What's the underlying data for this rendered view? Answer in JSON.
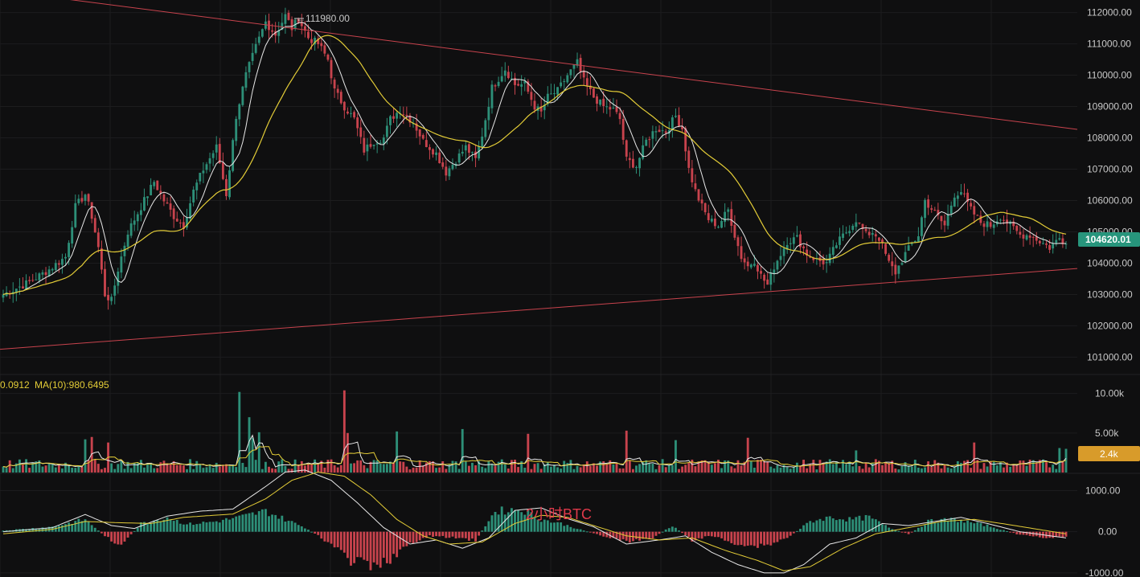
{
  "chart_data": [
    {
      "type": "candlestick",
      "panel": "price",
      "y_axis_ticks": [
        112000,
        111000,
        110000,
        109000,
        108000,
        107000,
        106000,
        105000,
        104000,
        103000,
        102000,
        101000
      ],
      "y_axis_labels": [
        "112000.00",
        "111000.00",
        "110000.00",
        "109000.00",
        "108000.00",
        "107000.00",
        "106000.00",
        "105000.00",
        "104000.00",
        "103000.00",
        "102000.00",
        "101000.00"
      ],
      "ylim": [
        100600,
        112400
      ],
      "current_price": 104620,
      "current_price_label": "104620.01",
      "high_marker_value": 111980,
      "high_marker_label": "111980.00",
      "trendlines": [
        {
          "name": "upper-resistance",
          "from": {
            "x": 0,
            "y": 112700
          },
          "to": {
            "x": 330,
            "y": 108270
          }
        },
        {
          "name": "lower-support",
          "from": {
            "x": 0,
            "y": 101250
          },
          "to": {
            "x": 330,
            "y": 103830
          }
        }
      ],
      "candle_keypoints": [
        [
          0,
          103000
        ],
        [
          8,
          103400
        ],
        [
          14,
          103800
        ],
        [
          19,
          104200
        ],
        [
          22,
          105800
        ],
        [
          25,
          106200
        ],
        [
          27,
          105500
        ],
        [
          29,
          104500
        ],
        [
          31,
          103000
        ],
        [
          33,
          102800
        ],
        [
          35,
          103800
        ],
        [
          38,
          105000
        ],
        [
          42,
          105800
        ],
        [
          46,
          106600
        ],
        [
          49,
          106000
        ],
        [
          52,
          105500
        ],
        [
          55,
          105200
        ],
        [
          58,
          106300
        ],
        [
          61,
          107000
        ],
        [
          65,
          107700
        ],
        [
          68,
          106200
        ],
        [
          71,
          108700
        ],
        [
          74,
          110000
        ],
        [
          77,
          110900
        ],
        [
          80,
          111700
        ],
        [
          83,
          111300
        ],
        [
          86,
          111900
        ],
        [
          88,
          111500
        ],
        [
          90,
          111800
        ],
        [
          93,
          111200
        ],
        [
          96,
          111000
        ],
        [
          99,
          110500
        ],
        [
          101,
          109500
        ],
        [
          104,
          109000
        ],
        [
          107,
          108600
        ],
        [
          110,
          107600
        ],
        [
          113,
          107900
        ],
        [
          116,
          108000
        ],
        [
          118,
          108600
        ],
        [
          121,
          108900
        ],
        [
          125,
          108500
        ],
        [
          128,
          107900
        ],
        [
          132,
          107500
        ],
        [
          135,
          106900
        ],
        [
          138,
          107300
        ],
        [
          141,
          107700
        ],
        [
          144,
          107300
        ],
        [
          146,
          108100
        ],
        [
          149,
          109600
        ],
        [
          153,
          110200
        ],
        [
          156,
          109700
        ],
        [
          159,
          109700
        ],
        [
          162,
          109000
        ],
        [
          164,
          108800
        ],
        [
          166,
          109300
        ],
        [
          169,
          109500
        ],
        [
          172,
          110000
        ],
        [
          175,
          110400
        ],
        [
          177,
          109800
        ],
        [
          180,
          109300
        ],
        [
          183,
          109000
        ],
        [
          186,
          108900
        ],
        [
          188,
          108600
        ],
        [
          190,
          107300
        ],
        [
          193,
          107100
        ],
        [
          196,
          107900
        ],
        [
          199,
          108300
        ],
        [
          202,
          108200
        ],
        [
          205,
          108700
        ],
        [
          207,
          108300
        ],
        [
          209,
          107000
        ],
        [
          211,
          106300
        ],
        [
          213,
          105800
        ],
        [
          215,
          105400
        ],
        [
          218,
          105200
        ],
        [
          221,
          105700
        ],
        [
          223,
          104900
        ],
        [
          225,
          104200
        ],
        [
          227,
          103900
        ],
        [
          229,
          104100
        ],
        [
          231,
          103600
        ],
        [
          233,
          103300
        ],
        [
          235,
          103900
        ],
        [
          237,
          104300
        ],
        [
          239,
          104700
        ],
        [
          242,
          104800
        ],
        [
          245,
          104300
        ],
        [
          248,
          104100
        ],
        [
          251,
          104000
        ],
        [
          254,
          104600
        ],
        [
          257,
          105000
        ],
        [
          260,
          105400
        ],
        [
          263,
          104900
        ],
        [
          265,
          105000
        ],
        [
          267,
          104800
        ],
        [
          270,
          104000
        ],
        [
          272,
          103700
        ],
        [
          275,
          104300
        ],
        [
          277,
          104600
        ],
        [
          279,
          104900
        ],
        [
          281,
          106000
        ],
        [
          284,
          105600
        ],
        [
          287,
          105200
        ],
        [
          290,
          106200
        ],
        [
          292,
          106300
        ],
        [
          295,
          105700
        ],
        [
          298,
          105300
        ],
        [
          301,
          105200
        ],
        [
          304,
          105500
        ],
        [
          307,
          105200
        ],
        [
          310,
          104900
        ],
        [
          313,
          104900
        ],
        [
          316,
          104700
        ],
        [
          319,
          104500
        ],
        [
          322,
          104800
        ],
        [
          324,
          104620
        ]
      ],
      "candle_count": 325
    },
    {
      "type": "bar",
      "panel": "volume",
      "legend_prefix": "0.0912",
      "ma_label": "MA(10):980.6495",
      "y_axis_labels": [
        "10.00k",
        "5.00k"
      ],
      "y_axis_ticks": [
        10000,
        5000
      ],
      "ylim": [
        0,
        12000
      ],
      "current_volume_label": "2.4k",
      "current_volume": 2400,
      "spikes": [
        [
          25,
          4200
        ],
        [
          27,
          4500
        ],
        [
          32,
          3800
        ],
        [
          72,
          10200
        ],
        [
          75,
          7000
        ],
        [
          76,
          4400
        ],
        [
          78,
          5100
        ],
        [
          104,
          10400
        ],
        [
          105,
          5000
        ],
        [
          120,
          5200
        ],
        [
          140,
          5500
        ],
        [
          160,
          4900
        ],
        [
          190,
          5300
        ],
        [
          205,
          4100
        ],
        [
          227,
          4400
        ],
        [
          260,
          2800
        ],
        [
          296,
          3800
        ],
        [
          322,
          3100
        ],
        [
          324,
          3000
        ]
      ]
    },
    {
      "type": "histogram",
      "panel": "macd",
      "annotation": "2小时BTC",
      "y_axis_ticks": [
        1000,
        0,
        -1000
      ],
      "y_axis_labels": [
        "1000.00",
        "0.00",
        "-1000.00"
      ],
      "ylim": [
        -1100,
        1400
      ],
      "histogram_keypoints": [
        [
          0,
          30
        ],
        [
          15,
          120
        ],
        [
          25,
          300
        ],
        [
          31,
          -100
        ],
        [
          36,
          -350
        ],
        [
          42,
          200
        ],
        [
          50,
          350
        ],
        [
          56,
          180
        ],
        [
          65,
          250
        ],
        [
          72,
          350
        ],
        [
          80,
          500
        ],
        [
          86,
          300
        ],
        [
          92,
          100
        ],
        [
          98,
          -200
        ],
        [
          106,
          -700
        ],
        [
          114,
          -900
        ],
        [
          122,
          -400
        ],
        [
          130,
          -100
        ],
        [
          138,
          -150
        ],
        [
          144,
          -200
        ],
        [
          150,
          500
        ],
        [
          158,
          550
        ],
        [
          164,
          300
        ],
        [
          170,
          200
        ],
        [
          176,
          50
        ],
        [
          182,
          -80
        ],
        [
          190,
          -250
        ],
        [
          198,
          -150
        ],
        [
          204,
          150
        ],
        [
          210,
          -200
        ],
        [
          216,
          -100
        ],
        [
          222,
          -250
        ],
        [
          228,
          -350
        ],
        [
          234,
          -300
        ],
        [
          240,
          -100
        ],
        [
          246,
          250
        ],
        [
          252,
          350
        ],
        [
          258,
          300
        ],
        [
          264,
          350
        ],
        [
          270,
          100
        ],
        [
          276,
          -60
        ],
        [
          282,
          250
        ],
        [
          290,
          300
        ],
        [
          300,
          150
        ],
        [
          310,
          -80
        ],
        [
          320,
          -150
        ],
        [
          324,
          -120
        ]
      ],
      "macd_keypoints": [
        [
          0,
          0
        ],
        [
          15,
          100
        ],
        [
          25,
          420
        ],
        [
          33,
          150
        ],
        [
          40,
          80
        ],
        [
          50,
          380
        ],
        [
          60,
          500
        ],
        [
          70,
          550
        ],
        [
          80,
          1100
        ],
        [
          86,
          1450
        ],
        [
          92,
          1500
        ],
        [
          100,
          1250
        ],
        [
          108,
          700
        ],
        [
          116,
          100
        ],
        [
          124,
          -300
        ],
        [
          132,
          -200
        ],
        [
          140,
          -400
        ],
        [
          148,
          -150
        ],
        [
          156,
          520
        ],
        [
          164,
          580
        ],
        [
          172,
          320
        ],
        [
          180,
          120
        ],
        [
          190,
          -300
        ],
        [
          200,
          -200
        ],
        [
          208,
          -100
        ],
        [
          216,
          -500
        ],
        [
          224,
          -800
        ],
        [
          232,
          -1000
        ],
        [
          238,
          -1000
        ],
        [
          244,
          -800
        ],
        [
          252,
          -300
        ],
        [
          260,
          -150
        ],
        [
          268,
          200
        ],
        [
          276,
          150
        ],
        [
          284,
          250
        ],
        [
          292,
          350
        ],
        [
          300,
          200
        ],
        [
          310,
          0
        ],
        [
          324,
          -150
        ]
      ],
      "signal_keypoints": [
        [
          0,
          -50
        ],
        [
          15,
          60
        ],
        [
          25,
          250
        ],
        [
          35,
          220
        ],
        [
          45,
          200
        ],
        [
          55,
          350
        ],
        [
          70,
          430
        ],
        [
          80,
          800
        ],
        [
          88,
          1250
        ],
        [
          96,
          1450
        ],
        [
          104,
          1350
        ],
        [
          112,
          900
        ],
        [
          120,
          300
        ],
        [
          128,
          -100
        ],
        [
          136,
          -300
        ],
        [
          146,
          -250
        ],
        [
          156,
          200
        ],
        [
          164,
          400
        ],
        [
          172,
          350
        ],
        [
          180,
          150
        ],
        [
          190,
          -100
        ],
        [
          200,
          -200
        ],
        [
          210,
          -150
        ],
        [
          220,
          -450
        ],
        [
          230,
          -700
        ],
        [
          238,
          -950
        ],
        [
          246,
          -850
        ],
        [
          256,
          -400
        ],
        [
          266,
          -50
        ],
        [
          276,
          100
        ],
        [
          286,
          250
        ],
        [
          296,
          300
        ],
        [
          306,
          180
        ],
        [
          324,
          -50
        ]
      ]
    }
  ],
  "colors": {
    "background": "#0f0f10",
    "grid": "#1c1c1e",
    "candle_up": "#2d8f78",
    "candle_down": "#c8434d",
    "ma_fast": "#e8e8e8",
    "ma_slow": "#e3cc37",
    "trendline": "#c8434d",
    "current_price_badge": "#27957c",
    "current_volume_badge": "#d89b2a",
    "annotation": "#e0394a"
  }
}
